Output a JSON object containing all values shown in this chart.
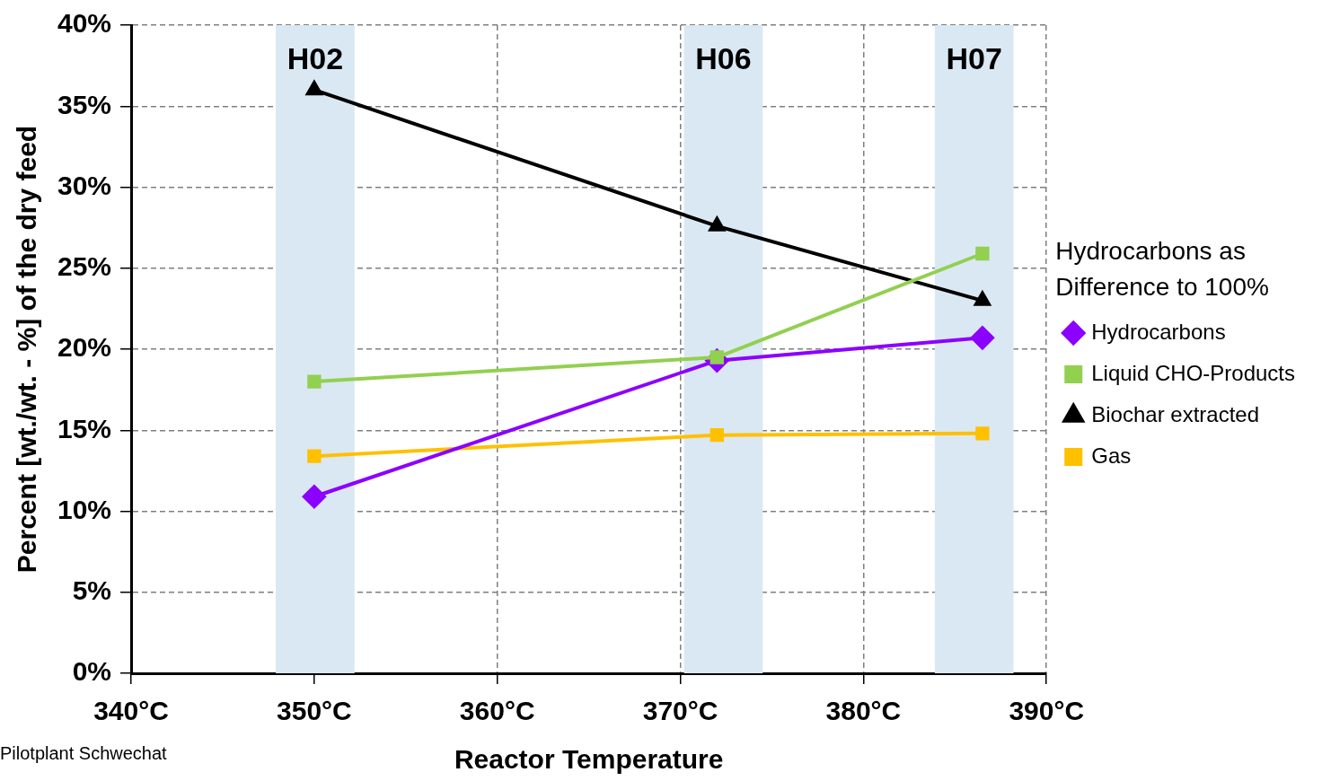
{
  "chart_data": {
    "type": "line",
    "xlabel": "Reactor Temperature",
    "ylabel": "Percent [wt./wt. - %] of the dry feed",
    "legend_title": "Hydrocarbons as Difference to 100%",
    "x": [
      350,
      372,
      386.5
    ],
    "series": [
      {
        "name": "Hydrocarbons",
        "color": "#8b00ff",
        "marker": "diamond",
        "values": [
          10.9,
          19.3,
          20.7
        ]
      },
      {
        "name": "Liquid CHO-Products",
        "color": "#92d050",
        "marker": "square",
        "values": [
          18.0,
          19.5,
          25.9
        ]
      },
      {
        "name": "Biochar extracted",
        "color": "#000000",
        "marker": "triangle",
        "values": [
          36.0,
          27.6,
          23.0
        ]
      },
      {
        "name": "Gas",
        "color": "#ffc000",
        "marker": "square",
        "values": [
          13.4,
          14.7,
          14.8
        ]
      }
    ],
    "xlim": [
      340,
      390
    ],
    "xticks": [
      {
        "value": 340,
        "label": "340°C"
      },
      {
        "value": 350,
        "label": "350°C"
      },
      {
        "value": 360,
        "label": "360°C"
      },
      {
        "value": 370,
        "label": "370°C"
      },
      {
        "value": 380,
        "label": "380°C"
      },
      {
        "value": 390,
        "label": "390°C"
      }
    ],
    "ylim": [
      0,
      40
    ],
    "yticks": [
      {
        "value": 0,
        "label": "0%"
      },
      {
        "value": 5,
        "label": "5%"
      },
      {
        "value": 10,
        "label": "10%"
      },
      {
        "value": 15,
        "label": "15%"
      },
      {
        "value": 20,
        "label": "20%"
      },
      {
        "value": 25,
        "label": "25%"
      },
      {
        "value": 30,
        "label": "30%"
      },
      {
        "value": 35,
        "label": "35%"
      },
      {
        "value": 40,
        "label": "40%"
      }
    ],
    "bands": [
      {
        "axis": "x",
        "from": 347.9,
        "to": 352.2,
        "label": "H02",
        "color": "#dae8f3"
      },
      {
        "axis": "x",
        "from": 370.2,
        "to": 374.5,
        "label": "H06",
        "color": "#dae8f3"
      },
      {
        "axis": "x",
        "from": 383.9,
        "to": 388.2,
        "label": "H07",
        "color": "#dae8f3"
      }
    ],
    "annotations": [
      "Pilotplant Schwechat"
    ],
    "grid": true,
    "legend": "right"
  }
}
